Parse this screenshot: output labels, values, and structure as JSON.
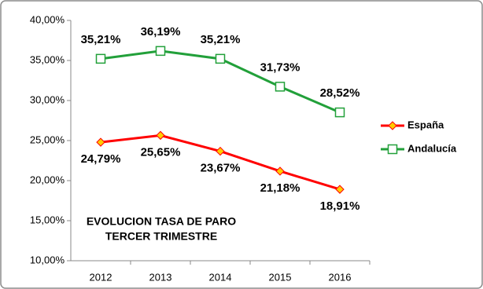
{
  "chart_data": {
    "type": "line",
    "title": "EVOLUCION TASA DE PARO",
    "subtitle": "TERCER TRIMESTRE",
    "categories": [
      "2012",
      "2013",
      "2014",
      "2015",
      "2016"
    ],
    "series": [
      {
        "name": "España",
        "color": "#ff0000",
        "marker": "diamond",
        "marker_color": "#ffcc00",
        "values": [
          24.79,
          25.65,
          23.67,
          21.18,
          18.91
        ],
        "value_labels": [
          "24,79%",
          "25,65%",
          "23,67%",
          "21,18%",
          "18,91%"
        ],
        "label_position": "below"
      },
      {
        "name": "Andalucía",
        "color": "#22a03a",
        "marker": "square",
        "marker_color": "#ffffff",
        "values": [
          35.21,
          36.19,
          35.21,
          31.73,
          28.52
        ],
        "value_labels": [
          "35,21%",
          "36,19%",
          "35,21%",
          "31,73%",
          "28,52%"
        ],
        "label_position": "above"
      }
    ],
    "ylim": [
      10,
      40
    ],
    "yticks": [
      {
        "value": 10,
        "label": "10,00%"
      },
      {
        "value": 15,
        "label": "15,00%"
      },
      {
        "value": 20,
        "label": "20,00%"
      },
      {
        "value": 25,
        "label": "25,00%"
      },
      {
        "value": 30,
        "label": "30,00%"
      },
      {
        "value": 35,
        "label": "35,00%"
      },
      {
        "value": 40,
        "label": "40,00%"
      }
    ],
    "grid": false,
    "legend": "right"
  }
}
